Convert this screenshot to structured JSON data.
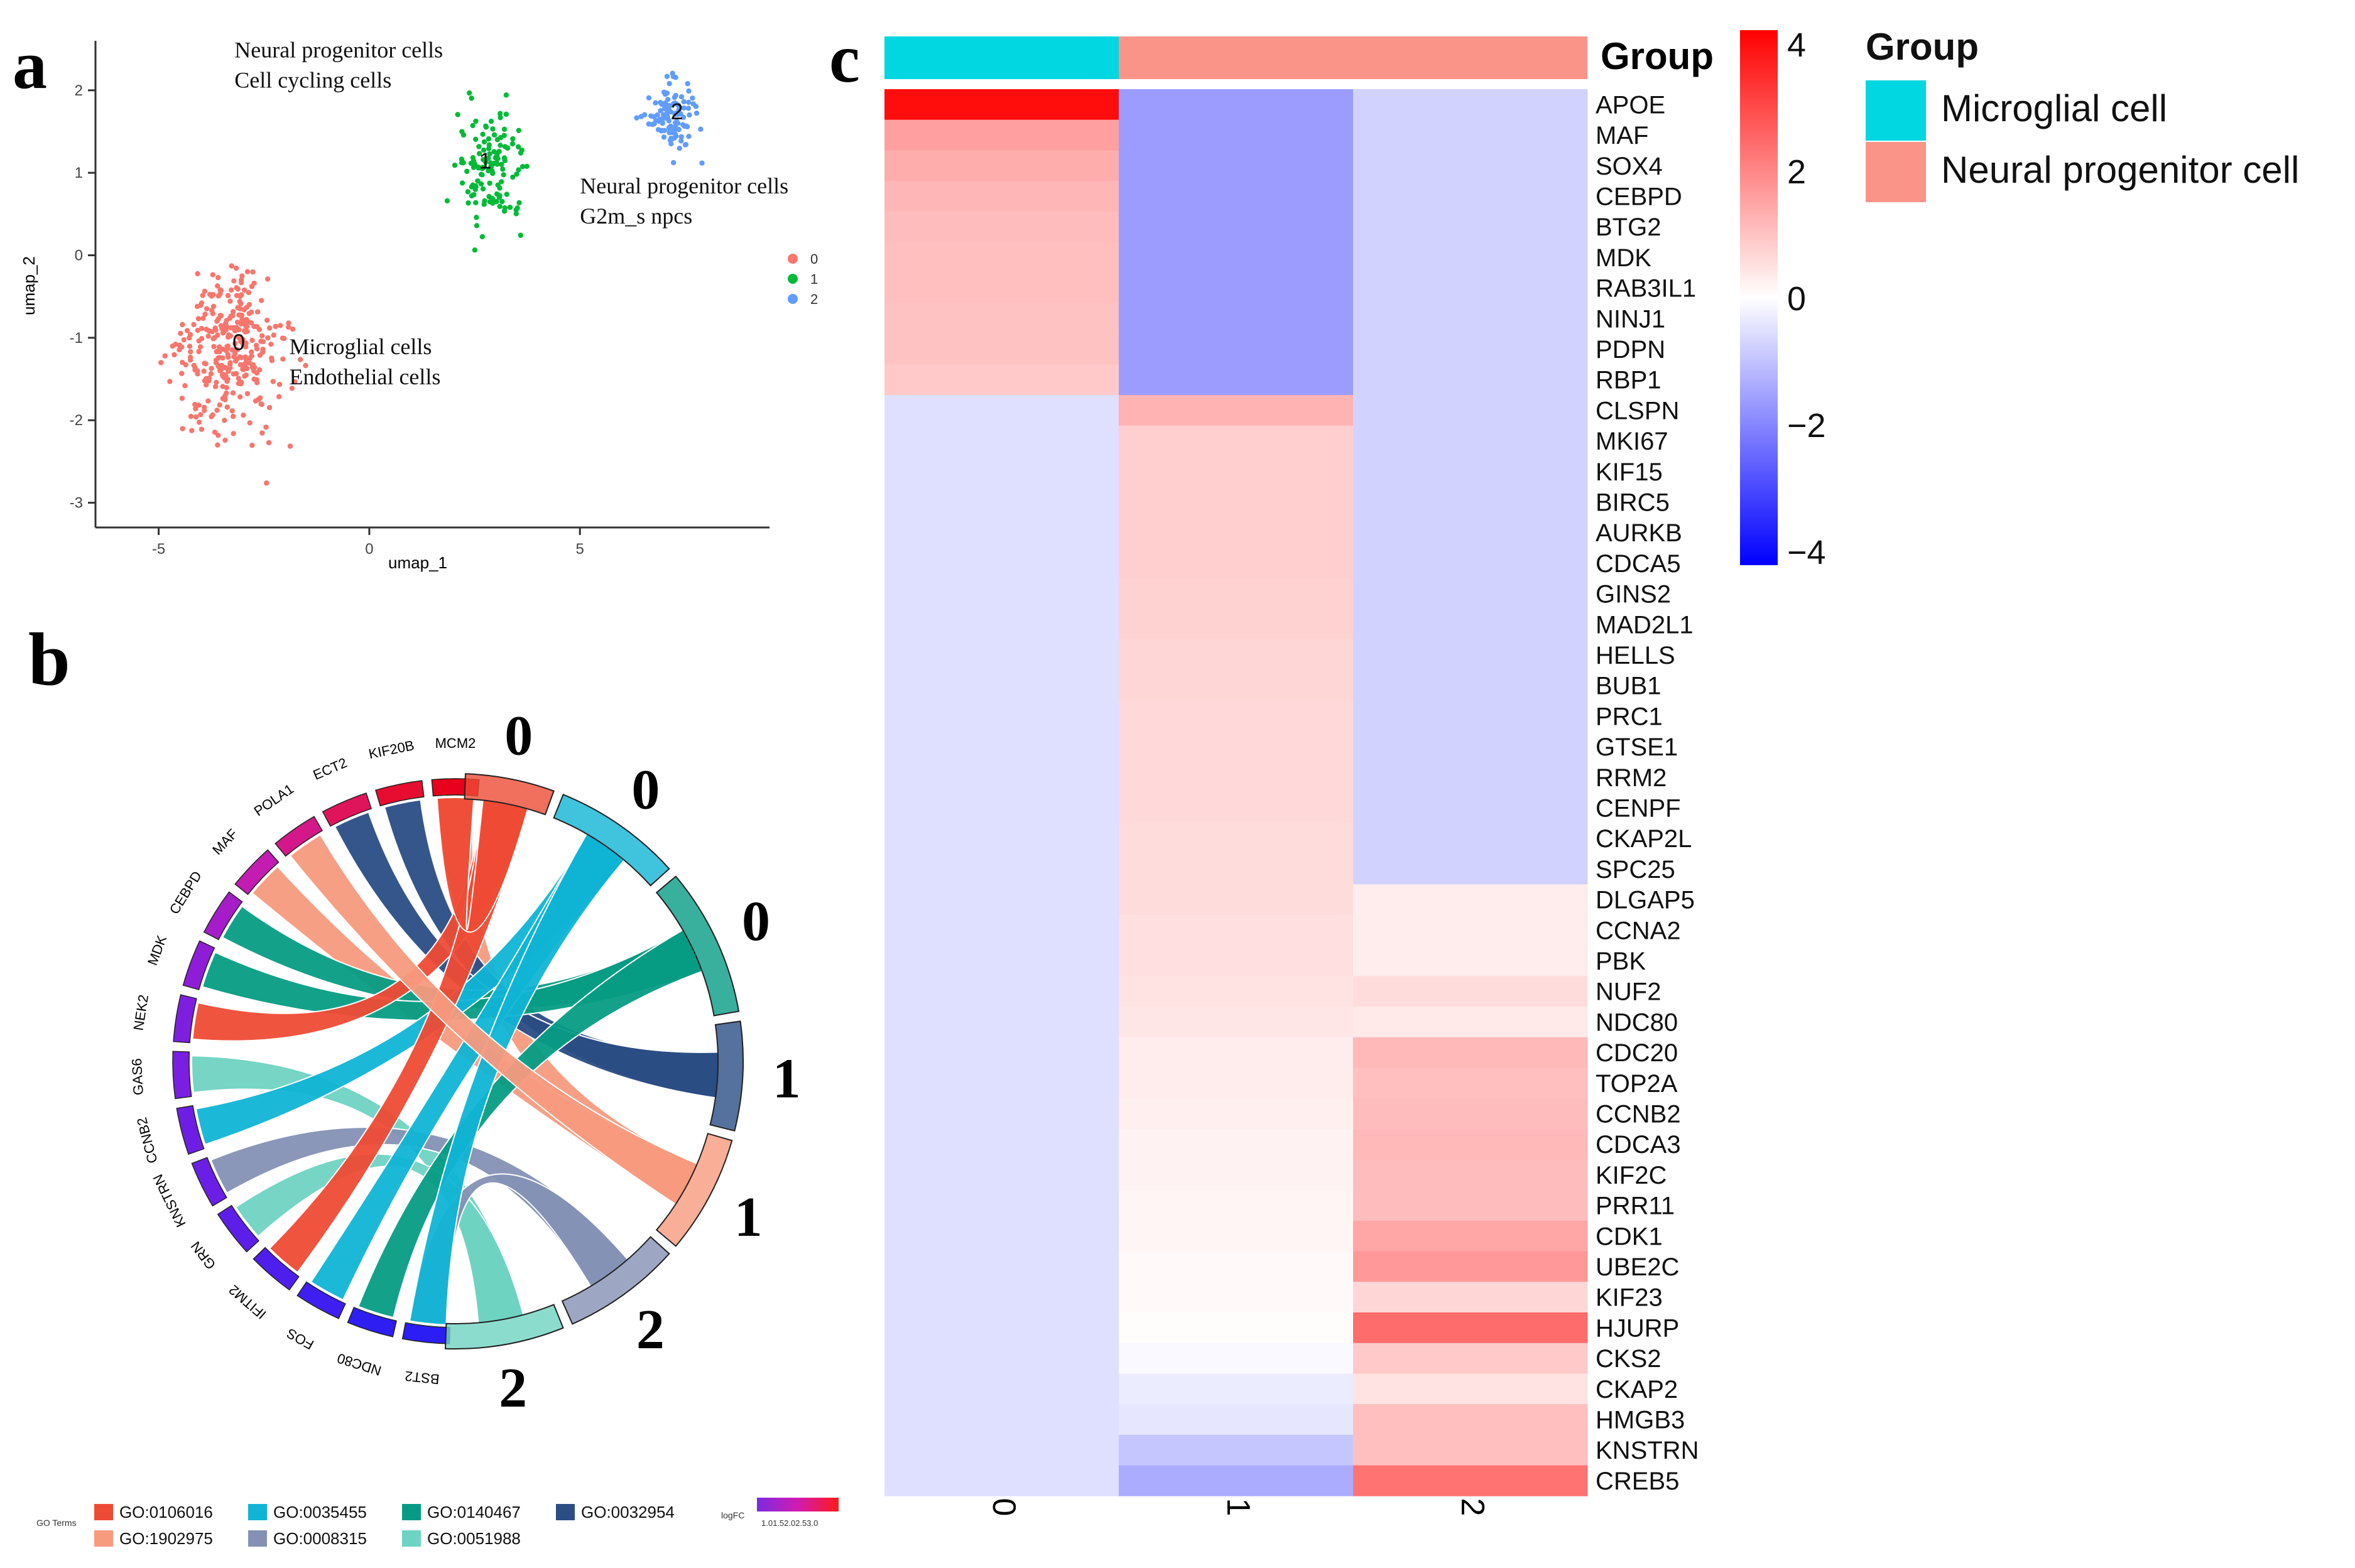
{
  "panels": {
    "a": "a",
    "b": "b",
    "c": "c"
  },
  "chart_data": [
    {
      "type": "scatter",
      "panel": "a",
      "xlabel": "umap_1",
      "ylabel": "umap_2",
      "xlim": [
        -6.5,
        9.5
      ],
      "ylim": [
        -3.3,
        2.6
      ],
      "x_ticks": [
        -5,
        0,
        5
      ],
      "y_ticks": [
        -3,
        -2,
        -1,
        0,
        1,
        2
      ],
      "legend": [
        "0",
        "1",
        "2"
      ],
      "legend_position": "right",
      "series": [
        {
          "name": "0",
          "color": "#F8766D",
          "center": [
            -3.3,
            -1.2
          ],
          "spread": [
            1.3,
            0.9
          ],
          "n": 330
        },
        {
          "name": "1",
          "color": "#00BA38",
          "center": [
            2.8,
            1.1
          ],
          "spread": [
            0.8,
            0.9
          ],
          "n": 130
        },
        {
          "name": "2",
          "color": "#619CFF",
          "center": [
            7.2,
            1.7
          ],
          "spread": [
            0.6,
            0.45
          ],
          "n": 115
        }
      ],
      "cluster_labels": [
        {
          "text": "0",
          "x": -3.1,
          "y": -1.15
        },
        {
          "text": "1",
          "x": 2.75,
          "y": 1.05
        },
        {
          "text": "2",
          "x": 7.3,
          "y": 1.65
        }
      ],
      "annotations": [
        {
          "lines": [
            "Neural progenitor cells",
            "Cell cycling cells"
          ],
          "x": -3.2,
          "y": 2.4
        },
        {
          "lines": [
            "Neural progenitor cells",
            "G2m_s npcs"
          ],
          "x": 5.0,
          "y": 0.75
        },
        {
          "lines": [
            "Microglial cells",
            "Endothelial cells"
          ],
          "x": -1.9,
          "y": -1.2
        }
      ]
    },
    {
      "type": "chord",
      "panel": "b",
      "genes": [
        "MCM2",
        "KIF20B",
        "ECT2",
        "POLA1",
        "MAF",
        "CEBPD",
        "MDK",
        "NEK2",
        "GAS6",
        "CCNB2",
        "KNSTRN",
        "GRN",
        "IFITM2",
        "FOS",
        "NDC80",
        "BST2"
      ],
      "clusters": [
        "0",
        "0",
        "0",
        "1",
        "1",
        "2",
        "2"
      ],
      "go_terms": [
        {
          "id": "GO:0106016",
          "color": "#EE4B35"
        },
        {
          "id": "GO:1902975",
          "color": "#F79A7E"
        },
        {
          "id": "GO:0035455",
          "color": "#10B4D5"
        },
        {
          "id": "GO:0008315",
          "color": "#8491B4"
        },
        {
          "id": "GO:0140467",
          "color": "#069C84"
        },
        {
          "id": "GO:0051988",
          "color": "#6FD3C2"
        },
        {
          "id": "GO:0032954",
          "color": "#2A4D84"
        }
      ],
      "legend_title": "GO Terms",
      "logfc_title": "logFC",
      "logfc_ticks": "1.01.52.02.53.0"
    },
    {
      "type": "heatmap",
      "panel": "c",
      "group_label": "Group",
      "groups": [
        {
          "name": "Microglial cell",
          "color": "#00D7E0"
        },
        {
          "name": "Neural progenitor cell",
          "color": "#FB9488"
        }
      ],
      "column_groups": [
        "Microglial cell",
        "Neural progenitor cell",
        "Neural progenitor cell"
      ],
      "columns": [
        "0",
        "1",
        "2"
      ],
      "scale": {
        "min": -4,
        "max": 4,
        "ticks": [
          "4",
          "2",
          "0",
          "−2",
          "−4"
        ]
      },
      "rows": [
        "APOE",
        "MAF",
        "SOX4",
        "CEBPD",
        "BTG2",
        "MDK",
        "RAB3IL1",
        "NINJ1",
        "PDPN",
        "RBP1",
        "CLSPN",
        "MKI67",
        "KIF15",
        "BIRC5",
        "AURKB",
        "CDCA5",
        "GINS2",
        "MAD2L1",
        "HELLS",
        "BUB1",
        "PRC1",
        "GTSE1",
        "RRM2",
        "CENPF",
        "CKAP2L",
        "SPC25",
        "DLGAP5",
        "CCNA2",
        "PBK",
        "NUF2",
        "NDC80",
        "CDC20",
        "TOP2A",
        "CCNB2",
        "CDCA3",
        "KIF2C",
        "PRR11",
        "CDK1",
        "UBE2C",
        "KIF23",
        "HJURP",
        "CKS2",
        "CKAP2",
        "HMGB3",
        "KNSTRN",
        "CREB5"
      ],
      "values": [
        [
          3.8,
          -1.55,
          -0.7
        ],
        [
          1.5,
          -1.55,
          -0.7
        ],
        [
          1.3,
          -1.55,
          -0.7
        ],
        [
          1.15,
          -1.55,
          -0.7
        ],
        [
          1.05,
          -1.55,
          -0.7
        ],
        [
          1.0,
          -1.55,
          -0.7
        ],
        [
          1.0,
          -1.55,
          -0.7
        ],
        [
          0.95,
          -1.55,
          -0.7
        ],
        [
          0.95,
          -1.55,
          -0.7
        ],
        [
          0.85,
          -1.55,
          -0.7
        ],
        [
          -0.5,
          1.2,
          -0.7
        ],
        [
          -0.5,
          0.75,
          -0.7
        ],
        [
          -0.5,
          0.75,
          -0.7
        ],
        [
          -0.5,
          0.75,
          -0.7
        ],
        [
          -0.5,
          0.75,
          -0.7
        ],
        [
          -0.5,
          0.75,
          -0.7
        ],
        [
          -0.5,
          0.7,
          -0.7
        ],
        [
          -0.5,
          0.7,
          -0.7
        ],
        [
          -0.5,
          0.65,
          -0.7
        ],
        [
          -0.5,
          0.65,
          -0.7
        ],
        [
          -0.5,
          0.6,
          -0.7
        ],
        [
          -0.5,
          0.6,
          -0.7
        ],
        [
          -0.5,
          0.6,
          -0.7
        ],
        [
          -0.5,
          0.6,
          -0.7
        ],
        [
          -0.5,
          0.55,
          -0.7
        ],
        [
          -0.5,
          0.55,
          -0.7
        ],
        [
          -0.5,
          0.55,
          0.3
        ],
        [
          -0.5,
          0.5,
          0.3
        ],
        [
          -0.5,
          0.5,
          0.3
        ],
        [
          -0.5,
          0.45,
          0.55
        ],
        [
          -0.5,
          0.4,
          0.35
        ],
        [
          -0.5,
          0.3,
          1.1
        ],
        [
          -0.5,
          0.3,
          1.0
        ],
        [
          -0.5,
          0.25,
          1.05
        ],
        [
          -0.5,
          0.2,
          1.1
        ],
        [
          -0.5,
          0.2,
          1.05
        ],
        [
          -0.5,
          0.15,
          1.05
        ],
        [
          -0.5,
          0.15,
          1.4
        ],
        [
          -0.5,
          0.1,
          1.6
        ],
        [
          -0.5,
          0.1,
          0.65
        ],
        [
          -0.5,
          0.05,
          2.3
        ],
        [
          -0.5,
          -0.1,
          0.85
        ],
        [
          -0.5,
          -0.3,
          0.45
        ],
        [
          -0.5,
          -0.4,
          1.0
        ],
        [
          -0.5,
          -0.9,
          1.0
        ],
        [
          -0.5,
          -1.3,
          2.2
        ]
      ]
    }
  ]
}
